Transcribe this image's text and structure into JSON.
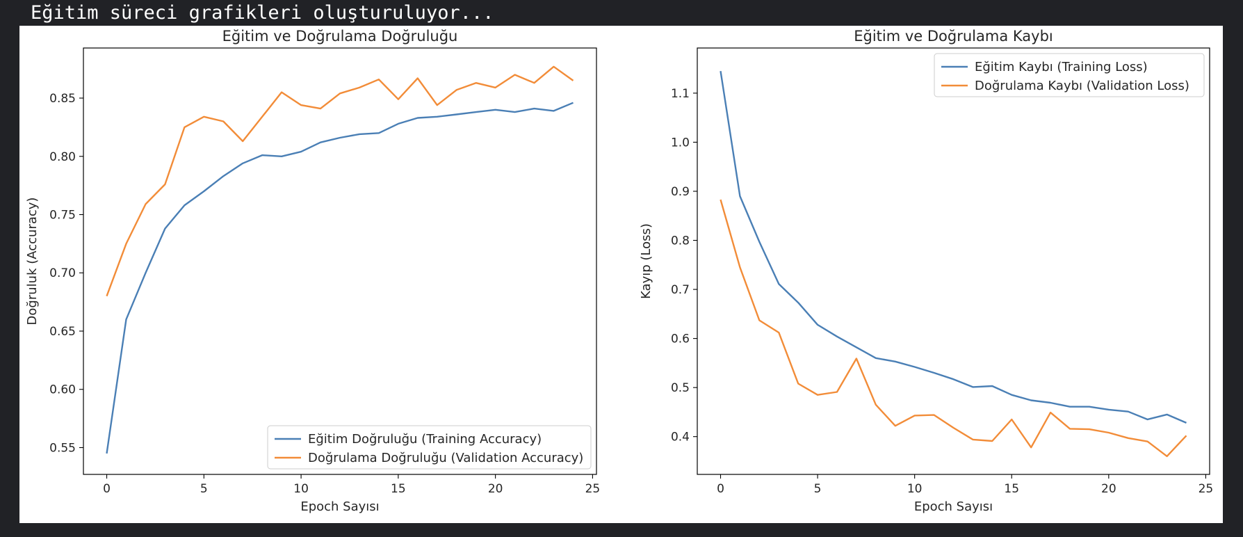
{
  "console": {
    "text": "Eğitim süreci grafikleri oluşturuluyor..."
  },
  "colors": {
    "background": "#212226",
    "figure": "#ffffff",
    "train": "#4a7fb5",
    "validation": "#f28c38"
  },
  "chart_data": [
    {
      "type": "line",
      "title": "Eğitim ve Doğrulama Doğruluğu",
      "xlabel": "Epoch Sayısı",
      "ylabel": "Doğruluk (Accuracy)",
      "xlim": [
        -1.2,
        25.2
      ],
      "ylim": [
        0.527,
        0.893
      ],
      "xticks": [
        0,
        5,
        10,
        15,
        20,
        25
      ],
      "yticks": [
        0.55,
        0.6,
        0.65,
        0.7,
        0.75,
        0.8,
        0.85
      ],
      "ytick_labels": [
        "0.55",
        "0.60",
        "0.65",
        "0.70",
        "0.75",
        "0.80",
        "0.85"
      ],
      "grid": false,
      "legend": "lower-right",
      "x": [
        0,
        1,
        2,
        3,
        4,
        5,
        6,
        7,
        8,
        9,
        10,
        11,
        12,
        13,
        14,
        15,
        16,
        17,
        18,
        19,
        20,
        21,
        22,
        23,
        24
      ],
      "series": [
        {
          "name": "Eğitim Doğruluğu (Training Accuracy)",
          "color": "#4a7fb5",
          "values": [
            0.545,
            0.66,
            0.7,
            0.738,
            0.758,
            0.77,
            0.783,
            0.794,
            0.801,
            0.8,
            0.804,
            0.812,
            0.816,
            0.819,
            0.82,
            0.828,
            0.833,
            0.834,
            0.836,
            0.838,
            0.84,
            0.838,
            0.841,
            0.839,
            0.846
          ]
        },
        {
          "name": "Doğrulama Doğruluğu (Validation Accuracy)",
          "color": "#f28c38",
          "values": [
            0.68,
            0.725,
            0.759,
            0.776,
            0.825,
            0.834,
            0.83,
            0.813,
            0.834,
            0.855,
            0.844,
            0.841,
            0.854,
            0.859,
            0.866,
            0.849,
            0.867,
            0.844,
            0.857,
            0.863,
            0.859,
            0.87,
            0.863,
            0.877,
            0.865
          ]
        }
      ]
    },
    {
      "type": "line",
      "title": "Eğitim ve Doğrulama Kaybı",
      "xlabel": "Epoch Sayısı",
      "ylabel": "Kayıp (Loss)",
      "xlim": [
        -1.2,
        25.2
      ],
      "ylim": [
        0.323,
        1.192
      ],
      "xticks": [
        0,
        5,
        10,
        15,
        20,
        25
      ],
      "yticks": [
        0.4,
        0.5,
        0.6,
        0.7,
        0.8,
        0.9,
        1.0,
        1.1
      ],
      "ytick_labels": [
        "0.4",
        "0.5",
        "0.6",
        "0.7",
        "0.8",
        "0.9",
        "1.0",
        "1.1"
      ],
      "grid": false,
      "legend": "upper-right",
      "x": [
        0,
        1,
        2,
        3,
        4,
        5,
        6,
        7,
        8,
        9,
        10,
        11,
        12,
        13,
        14,
        15,
        16,
        17,
        18,
        19,
        20,
        21,
        22,
        23,
        24
      ],
      "series": [
        {
          "name": "Eğitim Kaybı (Training Loss)",
          "color": "#4a7fb5",
          "values": [
            1.145,
            0.89,
            0.797,
            0.711,
            0.673,
            0.628,
            0.604,
            0.582,
            0.56,
            0.553,
            0.542,
            0.53,
            0.517,
            0.501,
            0.503,
            0.485,
            0.474,
            0.469,
            0.461,
            0.461,
            0.455,
            0.451,
            0.435,
            0.445,
            0.428
          ]
        },
        {
          "name": "Doğrulama Kaybı (Validation Loss)",
          "color": "#f28c38",
          "values": [
            0.883,
            0.745,
            0.637,
            0.612,
            0.508,
            0.485,
            0.491,
            0.559,
            0.465,
            0.422,
            0.443,
            0.444,
            0.418,
            0.394,
            0.391,
            0.435,
            0.378,
            0.449,
            0.416,
            0.415,
            0.408,
            0.397,
            0.39,
            0.36,
            0.402
          ]
        }
      ]
    }
  ]
}
